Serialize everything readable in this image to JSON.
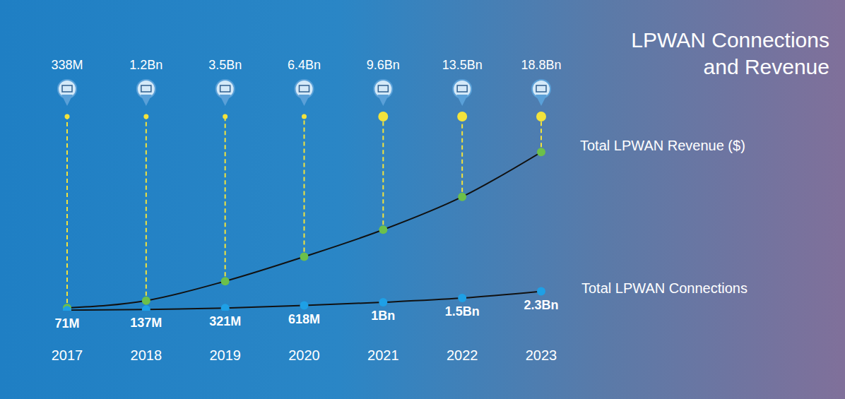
{
  "chart_data": {
    "type": "line",
    "title": "LPWAN Connections and Revenue",
    "categories": [
      "2017",
      "2018",
      "2019",
      "2020",
      "2021",
      "2022",
      "2023"
    ],
    "series": [
      {
        "name": "Total LPWAN Revenue ($)",
        "color": "#6cc04a",
        "values": [
          338,
          1200,
          3500,
          6400,
          9600,
          13500,
          18800
        ],
        "value_labels": [
          "338M",
          "1.2Bn",
          "3.5Bn",
          "6.4Bn",
          "9.6Bn",
          "13.5Bn",
          "18.8Bn"
        ]
      },
      {
        "name": "Total LPWAN Connections",
        "color": "#1ea0e6",
        "values": [
          71,
          137,
          321,
          618,
          1000,
          1500,
          2300
        ],
        "value_labels": [
          "71M",
          "137M",
          "321M",
          "618M",
          "1Bn",
          "1.5Bn",
          "2.3Bn"
        ]
      }
    ],
    "ylim": [
      0,
      20000
    ],
    "yticks": [
      0,
      20000
    ],
    "tick_labels": "x",
    "data_labels": true,
    "marker": "circle",
    "grid": false
  }
}
